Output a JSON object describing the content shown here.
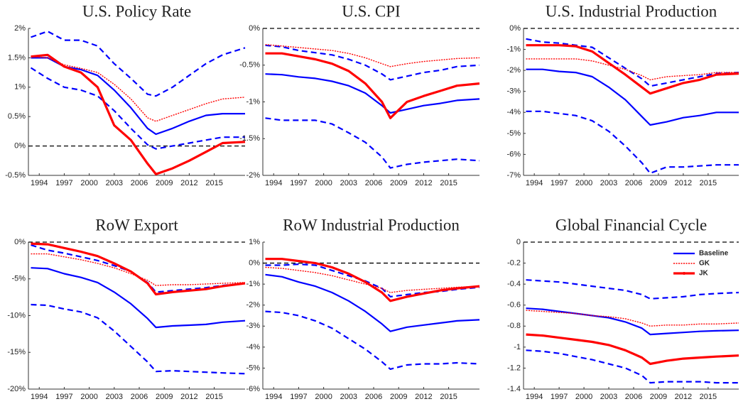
{
  "chart_data": [
    {
      "type": "line",
      "title": "U.S. Policy Rate",
      "x": [
        1993,
        1995,
        1997,
        1999,
        2001,
        2003,
        2005,
        2007,
        2008,
        2010,
        2012,
        2014,
        2016,
        2018.7
      ],
      "xlim": [
        1992.7,
        2018.7
      ],
      "xticks": [
        1994,
        1997,
        2000,
        2003,
        2006,
        2009,
        2012,
        2015
      ],
      "ylim": [
        -0.5,
        2
      ],
      "yticks": [
        {
          "value": -0.5,
          "label": "-0.5%"
        },
        {
          "value": 0,
          "label": "0%"
        },
        {
          "value": 0.5,
          "label": "0.5%"
        },
        {
          "value": 1,
          "label": "1%"
        },
        {
          "value": 1.5,
          "label": "1.5%"
        },
        {
          "value": 2,
          "label": "2%"
        }
      ],
      "series": [
        {
          "color": "#0000ff",
          "style": "solid",
          "values": [
            1.5,
            1.5,
            1.35,
            1.3,
            1.2,
            0.95,
            0.65,
            0.3,
            0.2,
            0.3,
            0.42,
            0.52,
            0.55,
            0.55
          ],
          "upper": [
            1.85,
            1.95,
            1.8,
            1.8,
            1.7,
            1.4,
            1.15,
            0.88,
            0.85,
            1.0,
            1.2,
            1.4,
            1.55,
            1.67
          ],
          "lower": [
            1.33,
            1.15,
            1.0,
            0.95,
            0.85,
            0.6,
            0.3,
            0.02,
            -0.05,
            0.0,
            0.05,
            0.1,
            0.15,
            0.15
          ]
        },
        {
          "color": "#ff0000",
          "style": "dotted",
          "values": [
            1.52,
            1.5,
            1.38,
            1.32,
            1.25,
            1.05,
            0.8,
            0.48,
            0.42,
            0.52,
            0.62,
            0.72,
            0.8,
            0.83
          ]
        },
        {
          "color": "#ff0000",
          "style": "thick",
          "values": [
            1.52,
            1.55,
            1.35,
            1.25,
            1.0,
            0.35,
            0.1,
            -0.3,
            -0.48,
            -0.38,
            -0.25,
            -0.1,
            0.05,
            0.07
          ]
        }
      ]
    },
    {
      "type": "line",
      "title": "U.S. CPI",
      "x": [
        1993,
        1995,
        1997,
        1999,
        2001,
        2003,
        2005,
        2007,
        2008,
        2010,
        2012,
        2014,
        2016,
        2018.7
      ],
      "xlim": [
        1992.7,
        2018.7
      ],
      "xticks": [
        1994,
        1997,
        2000,
        2003,
        2006,
        2009,
        2012,
        2015
      ],
      "ylim": [
        -2,
        0
      ],
      "yticks": [
        {
          "value": -2,
          "label": "-2%"
        },
        {
          "value": -1.5,
          "label": "-1.5%"
        },
        {
          "value": -1,
          "label": "-1%"
        },
        {
          "value": -0.5,
          "label": "-0.5%"
        },
        {
          "value": 0,
          "label": "0%"
        }
      ],
      "series": [
        {
          "color": "#0000ff",
          "style": "solid",
          "values": [
            -0.62,
            -0.63,
            -0.66,
            -0.68,
            -0.72,
            -0.78,
            -0.88,
            -1.05,
            -1.15,
            -1.1,
            -1.05,
            -1.02,
            -0.98,
            -0.96
          ],
          "upper": [
            -0.23,
            -0.25,
            -0.3,
            -0.33,
            -0.36,
            -0.42,
            -0.5,
            -0.62,
            -0.7,
            -0.65,
            -0.6,
            -0.57,
            -0.52,
            -0.5
          ],
          "lower": [
            -1.22,
            -1.25,
            -1.25,
            -1.25,
            -1.3,
            -1.42,
            -1.55,
            -1.75,
            -1.9,
            -1.85,
            -1.82,
            -1.8,
            -1.78,
            -1.8
          ]
        },
        {
          "color": "#ff0000",
          "style": "dotted",
          "values": [
            -0.22,
            -0.24,
            -0.26,
            -0.28,
            -0.3,
            -0.34,
            -0.4,
            -0.48,
            -0.52,
            -0.48,
            -0.45,
            -0.43,
            -0.41,
            -0.4
          ]
        },
        {
          "color": "#ff0000",
          "style": "thick",
          "values": [
            -0.34,
            -0.34,
            -0.38,
            -0.42,
            -0.48,
            -0.58,
            -0.75,
            -1.0,
            -1.22,
            -1.0,
            -0.92,
            -0.85,
            -0.78,
            -0.75
          ]
        }
      ]
    },
    {
      "type": "line",
      "title": "U.S. Industrial Production",
      "x": [
        1993,
        1995,
        1997,
        1999,
        2001,
        2003,
        2005,
        2007,
        2008,
        2010,
        2012,
        2014,
        2016,
        2018.7
      ],
      "xlim": [
        1992.7,
        2018.7
      ],
      "xticks": [
        1994,
        1997,
        2000,
        2003,
        2006,
        2009,
        2012,
        2015
      ],
      "ylim": [
        -7,
        0
      ],
      "yticks": [
        {
          "value": -7,
          "label": "-7%"
        },
        {
          "value": -6,
          "label": "-6%"
        },
        {
          "value": -5,
          "label": "-5%"
        },
        {
          "value": -4,
          "label": "-4%"
        },
        {
          "value": -3,
          "label": "-3%"
        },
        {
          "value": -2,
          "label": "-2%"
        },
        {
          "value": -1,
          "label": "-1%"
        },
        {
          "value": 0,
          "label": "0%"
        }
      ],
      "series": [
        {
          "color": "#0000ff",
          "style": "solid",
          "values": [
            -1.95,
            -1.95,
            -2.05,
            -2.1,
            -2.3,
            -2.8,
            -3.4,
            -4.2,
            -4.6,
            -4.45,
            -4.25,
            -4.15,
            -4.0,
            -4.0
          ],
          "upper": [
            -0.5,
            -0.65,
            -0.7,
            -0.8,
            -0.9,
            -1.4,
            -1.9,
            -2.4,
            -2.75,
            -2.6,
            -2.45,
            -2.3,
            -2.15,
            -2.1
          ],
          "lower": [
            -3.95,
            -3.95,
            -4.05,
            -4.15,
            -4.4,
            -4.9,
            -5.6,
            -6.4,
            -6.9,
            -6.6,
            -6.6,
            -6.55,
            -6.5,
            -6.5
          ]
        },
        {
          "color": "#ff0000",
          "style": "dotted",
          "values": [
            -1.45,
            -1.45,
            -1.45,
            -1.45,
            -1.55,
            -1.75,
            -1.95,
            -2.25,
            -2.45,
            -2.3,
            -2.25,
            -2.2,
            -2.1,
            -2.1
          ]
        },
        {
          "color": "#ff0000",
          "style": "thick",
          "values": [
            -0.8,
            -0.8,
            -0.8,
            -0.85,
            -1.1,
            -1.65,
            -2.2,
            -2.8,
            -3.1,
            -2.85,
            -2.6,
            -2.45,
            -2.2,
            -2.15
          ]
        }
      ]
    },
    {
      "type": "line",
      "title": "RoW Export",
      "x": [
        1993,
        1995,
        1997,
        1999,
        2001,
        2003,
        2005,
        2007,
        2008,
        2010,
        2012,
        2014,
        2016,
        2018.7
      ],
      "xlim": [
        1992.7,
        2018.7
      ],
      "xticks": [
        1994,
        1997,
        2000,
        2003,
        2006,
        2009,
        2012,
        2015
      ],
      "ylim": [
        -20,
        0
      ],
      "yticks": [
        {
          "value": -20,
          "label": "-20%"
        },
        {
          "value": -15,
          "label": "-15%"
        },
        {
          "value": -10,
          "label": "-10%"
        },
        {
          "value": -5,
          "label": "-5%"
        },
        {
          "value": 0,
          "label": "0%"
        }
      ],
      "series": [
        {
          "color": "#0000ff",
          "style": "solid",
          "values": [
            -3.5,
            -3.6,
            -4.3,
            -4.8,
            -5.5,
            -6.8,
            -8.4,
            -10.4,
            -11.6,
            -11.4,
            -11.3,
            -11.2,
            -10.9,
            -10.7
          ],
          "upper": [
            -0.4,
            -1.1,
            -1.5,
            -2.0,
            -2.5,
            -3.2,
            -4.0,
            -5.5,
            -6.8,
            -6.6,
            -6.4,
            -6.2,
            -5.9,
            -5.6
          ],
          "lower": [
            -8.5,
            -8.6,
            -9.1,
            -9.5,
            -10.3,
            -12.1,
            -14.2,
            -16.3,
            -17.6,
            -17.5,
            -17.6,
            -17.7,
            -17.8,
            -17.9
          ]
        },
        {
          "color": "#ff0000",
          "style": "dotted",
          "values": [
            -1.6,
            -1.6,
            -2.0,
            -2.4,
            -2.9,
            -3.5,
            -4.3,
            -5.2,
            -5.9,
            -5.8,
            -5.8,
            -5.7,
            -5.6,
            -5.5
          ]
        },
        {
          "color": "#ff0000",
          "style": "thick",
          "values": [
            -0.2,
            -0.3,
            -0.8,
            -1.3,
            -1.9,
            -2.9,
            -4.0,
            -5.6,
            -7.1,
            -6.8,
            -6.6,
            -6.4,
            -6.0,
            -5.6
          ]
        }
      ]
    },
    {
      "type": "line",
      "title": "RoW Industrial Production",
      "x": [
        1993,
        1995,
        1997,
        1999,
        2001,
        2003,
        2005,
        2007,
        2008,
        2010,
        2012,
        2014,
        2016,
        2018.7
      ],
      "xlim": [
        1992.7,
        2018.7
      ],
      "xticks": [
        1994,
        1997,
        2000,
        2003,
        2006,
        2009,
        2012,
        2015
      ],
      "ylim": [
        -6,
        1
      ],
      "yticks": [
        {
          "value": -6,
          "label": "-6%"
        },
        {
          "value": -5,
          "label": "-5%"
        },
        {
          "value": -4,
          "label": "-4%"
        },
        {
          "value": -3,
          "label": "-3%"
        },
        {
          "value": -2,
          "label": "-2%"
        },
        {
          "value": -1,
          "label": "-1%"
        },
        {
          "value": 0,
          "label": "0%"
        },
        {
          "value": 1,
          "label": "1%"
        }
      ],
      "series": [
        {
          "color": "#0000ff",
          "style": "solid",
          "values": [
            -0.55,
            -0.65,
            -0.9,
            -1.1,
            -1.4,
            -1.8,
            -2.3,
            -2.9,
            -3.25,
            -3.05,
            -2.95,
            -2.85,
            -2.75,
            -2.7
          ],
          "upper": [
            -0.1,
            -0.1,
            -0.05,
            -0.1,
            -0.35,
            -0.6,
            -0.85,
            -1.2,
            -1.6,
            -1.5,
            -1.4,
            -1.35,
            -1.25,
            -1.15
          ],
          "lower": [
            -2.3,
            -2.35,
            -2.5,
            -2.75,
            -3.1,
            -3.6,
            -4.1,
            -4.7,
            -5.05,
            -4.85,
            -4.8,
            -4.8,
            -4.75,
            -4.8
          ]
        },
        {
          "color": "#ff0000",
          "style": "dotted",
          "values": [
            -0.2,
            -0.25,
            -0.35,
            -0.45,
            -0.6,
            -0.8,
            -1.0,
            -1.2,
            -1.4,
            -1.3,
            -1.25,
            -1.2,
            -1.15,
            -1.1
          ]
        },
        {
          "color": "#ff0000",
          "style": "thick",
          "values": [
            0.2,
            0.2,
            0.1,
            0.0,
            -0.2,
            -0.5,
            -0.9,
            -1.4,
            -1.8,
            -1.6,
            -1.45,
            -1.3,
            -1.2,
            -1.1
          ]
        }
      ]
    },
    {
      "type": "line",
      "title": "Global Financial Cycle",
      "x": [
        1993,
        1995,
        1997,
        1999,
        2001,
        2003,
        2005,
        2007,
        2008,
        2010,
        2012,
        2014,
        2016,
        2018.7
      ],
      "xlim": [
        1992.7,
        2018.7
      ],
      "xticks": [
        1994,
        1997,
        2000,
        2003,
        2006,
        2009,
        2012,
        2015
      ],
      "ylim": [
        -1.4,
        0
      ],
      "yticks": [
        -1.4,
        -1.2,
        -1,
        -0.8,
        -0.6,
        -0.4,
        -0.2,
        0
      ],
      "legend": "upper right",
      "series": [
        {
          "name": "Baseline",
          "color": "#0000ff",
          "style": "solid",
          "values": [
            -0.63,
            -0.64,
            -0.66,
            -0.68,
            -0.7,
            -0.72,
            -0.76,
            -0.82,
            -0.88,
            -0.87,
            -0.86,
            -0.85,
            -0.845,
            -0.84
          ],
          "upper": [
            -0.36,
            -0.37,
            -0.38,
            -0.4,
            -0.42,
            -0.44,
            -0.46,
            -0.5,
            -0.54,
            -0.53,
            -0.52,
            -0.5,
            -0.49,
            -0.48
          ],
          "lower": [
            -1.03,
            -1.04,
            -1.06,
            -1.09,
            -1.12,
            -1.16,
            -1.2,
            -1.27,
            -1.34,
            -1.33,
            -1.33,
            -1.33,
            -1.34,
            -1.34
          ]
        },
        {
          "name": "GK",
          "color": "#ff0000",
          "style": "dotted",
          "values": [
            -0.65,
            -0.66,
            -0.67,
            -0.68,
            -0.7,
            -0.71,
            -0.73,
            -0.77,
            -0.8,
            -0.79,
            -0.79,
            -0.78,
            -0.78,
            -0.77
          ]
        },
        {
          "name": "JK",
          "color": "#ff0000",
          "style": "thick",
          "values": [
            -0.88,
            -0.89,
            -0.91,
            -0.93,
            -0.95,
            -0.98,
            -1.03,
            -1.1,
            -1.16,
            -1.13,
            -1.11,
            -1.1,
            -1.09,
            -1.08
          ]
        }
      ]
    }
  ]
}
